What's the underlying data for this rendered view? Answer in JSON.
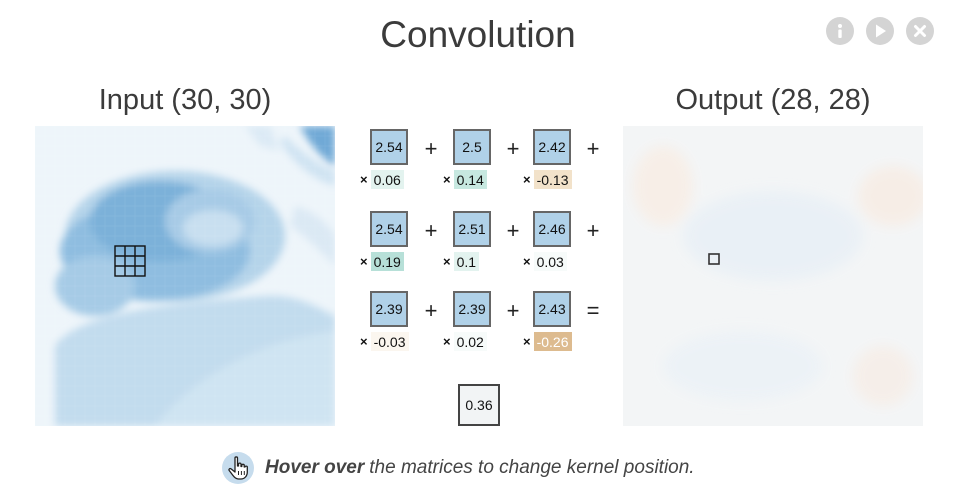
{
  "title": "Convolution",
  "controls": [
    {
      "name": "info-icon"
    },
    {
      "name": "play-icon"
    },
    {
      "name": "close-icon"
    }
  ],
  "input_label": "Input (30, 30)",
  "output_label": "Output (28, 28)",
  "rows": [
    {
      "cells": [
        "2.54",
        "2.5",
        "2.42"
      ],
      "weights": [
        "0.06",
        "0.14",
        "-0.13"
      ],
      "ops": [
        "+",
        "+",
        "+"
      ]
    },
    {
      "cells": [
        "2.54",
        "2.51",
        "2.46"
      ],
      "weights": [
        "0.19",
        "0.1",
        "0.03"
      ],
      "ops": [
        "+",
        "+",
        "+"
      ]
    },
    {
      "cells": [
        "2.39",
        "2.39",
        "2.43"
      ],
      "weights": [
        "-0.03",
        "0.02",
        "-0.26"
      ],
      "ops": [
        "+",
        "+",
        "="
      ]
    }
  ],
  "weight_colors": {
    "positive_strong": "#b7e0d8",
    "positive_light": "#e3f3ef",
    "negative_light": "#f6e8d3",
    "negative_strong": "#ddbb8f"
  },
  "multiply_symbol": "×",
  "result": "0.36",
  "hint": {
    "bold": "Hover over",
    "rest": "the matrices to change kernel position."
  }
}
